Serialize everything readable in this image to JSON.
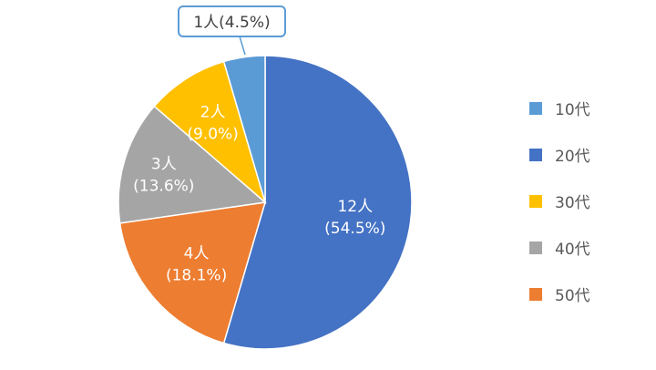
{
  "chart_data": {
    "type": "pie",
    "slices": [
      {
        "category": "10代",
        "count": 1,
        "percent": 4.5,
        "label_line1": "1人",
        "label_line2": "(4.5%)",
        "color": "#5B9BD5"
      },
      {
        "category": "20代",
        "count": 12,
        "percent": 54.5,
        "label_line1": "12人",
        "label_line2": "(54.5%)",
        "color": "#4472C4"
      },
      {
        "category": "30代",
        "count": 2,
        "percent": 9.0,
        "label_line1": "2人",
        "label_line2": "(9.0%)",
        "color": "#FFC000"
      },
      {
        "category": "40代",
        "count": 3,
        "percent": 13.6,
        "label_line1": "3人",
        "label_line2": "(13.6%)",
        "color": "#A5A5A5"
      },
      {
        "category": "50代",
        "count": 4,
        "percent": 18.1,
        "label_line1": "4人",
        "label_line2": "(18.1%)",
        "color": "#ED7D31"
      }
    ],
    "draw_order": [
      "20代",
      "50代",
      "40代",
      "30代",
      "10代"
    ],
    "legend": {
      "position": "right",
      "entries": [
        "10代",
        "20代",
        "30代",
        "40代",
        "50代"
      ]
    },
    "callout_label": "1人(4.5%)"
  }
}
